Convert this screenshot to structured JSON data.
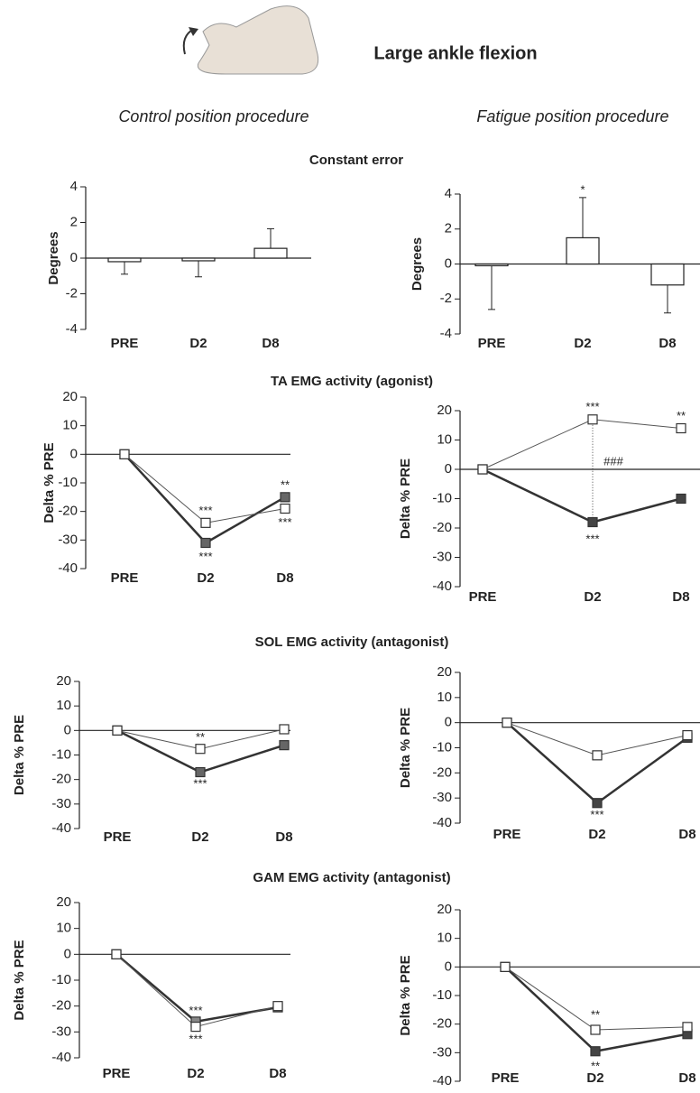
{
  "title": "Large ankle flexion",
  "columns": [
    "Control position procedure",
    "Fatigue position procedure"
  ],
  "rows": [
    "Constant error",
    "TA EMG activity (agonist)",
    "SOL EMG activity (antagonist)",
    "GAM EMG activity (antagonist)"
  ],
  "chart_data": [
    {
      "type": "bar",
      "ylabel": "Degrees",
      "categories": [
        "PRE",
        "D2",
        "D8"
      ],
      "values": [
        -0.2,
        -0.15,
        0.55
      ],
      "errors": [
        0.7,
        0.9,
        1.1
      ],
      "color": "#ffffff",
      "ylim": [
        -4,
        4
      ],
      "yticks": [
        -4,
        -2,
        0,
        2,
        4
      ],
      "annotations": []
    },
    {
      "type": "bar",
      "ylabel": "Degrees",
      "categories": [
        "PRE",
        "D2",
        "D8"
      ],
      "values": [
        -0.1,
        1.5,
        -1.2
      ],
      "errors": [
        2.5,
        2.3,
        1.6
      ],
      "color": "#ffffff",
      "ylim": [
        -4,
        4
      ],
      "yticks": [
        -4,
        -2,
        0,
        2,
        4
      ],
      "annotations": [
        {
          "text": "*",
          "x": "D2",
          "y": 4.2
        }
      ]
    },
    {
      "type": "line",
      "ylabel": "Delta % PRE",
      "categories": [
        "PRE",
        "D2",
        "D8"
      ],
      "series": [
        {
          "color": "#ffffff",
          "values": [
            0,
            -24,
            -19
          ]
        },
        {
          "color": "#666666",
          "values": [
            0,
            -31,
            -15
          ]
        }
      ],
      "ylim": [
        -40,
        20
      ],
      "yticks": [
        -40,
        -30,
        -20,
        -10,
        0,
        10,
        20
      ],
      "annotations": [
        {
          "text": "***",
          "x": "D2",
          "y": -20
        },
        {
          "text": "***",
          "x": "D2",
          "y": -36
        },
        {
          "text": "**",
          "x": "D8",
          "y": -11
        },
        {
          "text": "***",
          "x": "D8",
          "y": -24
        }
      ]
    },
    {
      "type": "line",
      "ylabel": "Delta % PRE",
      "categories": [
        "PRE",
        "D2",
        "D8"
      ],
      "series": [
        {
          "color": "#ffffff",
          "values": [
            0,
            17,
            14
          ]
        },
        {
          "color": "#444444",
          "values": [
            0,
            -18,
            -10
          ]
        }
      ],
      "ylim": [
        -40,
        20
      ],
      "yticks": [
        -40,
        -30,
        -20,
        -10,
        0,
        10,
        20
      ],
      "droplines": [
        "D2"
      ],
      "annotations": [
        {
          "text": "***",
          "x": "D2",
          "y": 21
        },
        {
          "text": "**",
          "x": "D8",
          "y": 18
        },
        {
          "text": "***",
          "x": "D2",
          "y": -24
        },
        {
          "text": "###",
          "x": "D8",
          "y": 2.5
        }
      ]
    },
    {
      "type": "line",
      "ylabel": "Delta % PRE",
      "categories": [
        "PRE",
        "D2",
        "D8"
      ],
      "series": [
        {
          "color": "#ffffff",
          "values": [
            0,
            -7.5,
            0.5
          ]
        },
        {
          "color": "#666666",
          "values": [
            0,
            -17,
            -6
          ]
        }
      ],
      "ylim": [
        -40,
        20
      ],
      "yticks": [
        -40,
        -30,
        -20,
        -10,
        0,
        10,
        20
      ],
      "annotations": [
        {
          "text": "**",
          "x": "D2",
          "y": -3
        },
        {
          "text": "***",
          "x": "D2",
          "y": -22
        }
      ]
    },
    {
      "type": "line",
      "ylabel": "Delta % PRE",
      "categories": [
        "PRE",
        "D2",
        "D8"
      ],
      "series": [
        {
          "color": "#ffffff",
          "values": [
            0,
            -13,
            -5
          ]
        },
        {
          "color": "#444444",
          "values": [
            0,
            -32,
            -6
          ]
        }
      ],
      "ylim": [
        -40,
        20
      ],
      "yticks": [
        -40,
        -30,
        -20,
        -10,
        0,
        10,
        20
      ],
      "annotations": [
        {
          "text": "***",
          "x": "D2",
          "y": -37
        }
      ]
    },
    {
      "type": "line",
      "ylabel": "Delta % PRE",
      "categories": [
        "PRE",
        "D2",
        "D8"
      ],
      "series": [
        {
          "color": "#ffffff",
          "values": [
            0,
            -28,
            -20
          ]
        },
        {
          "color": "#888888",
          "values": [
            0,
            -26,
            -20.5
          ]
        }
      ],
      "ylim": [
        -40,
        20
      ],
      "yticks": [
        -40,
        -30,
        -20,
        -10,
        0,
        10,
        20
      ],
      "annotations": [
        {
          "text": "***",
          "x": "D2",
          "y": -22
        },
        {
          "text": "***",
          "x": "D2",
          "y": -33
        }
      ]
    },
    {
      "type": "line",
      "ylabel": "Delta % PRE",
      "categories": [
        "PRE",
        "D2",
        "D8"
      ],
      "series": [
        {
          "color": "#ffffff",
          "values": [
            0,
            -22,
            -21
          ]
        },
        {
          "color": "#444444",
          "values": [
            0,
            -29.5,
            -23.5
          ]
        }
      ],
      "ylim": [
        -40,
        20
      ],
      "yticks": [
        -40,
        -30,
        -20,
        -10,
        0,
        10,
        20
      ],
      "annotations": [
        {
          "text": "**",
          "x": "D2",
          "y": -17
        },
        {
          "text": "**",
          "x": "D2",
          "y": -35
        }
      ]
    }
  ]
}
